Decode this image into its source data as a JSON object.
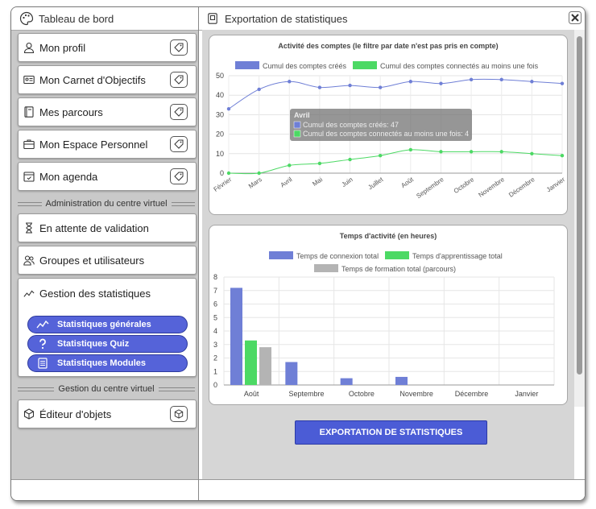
{
  "left_panel": {
    "title": "Tableau de bord",
    "items": [
      {
        "label": "Mon profil",
        "icon": "user-icon"
      },
      {
        "label": "Mon Carnet d'Objectifs",
        "icon": "id-card-icon"
      },
      {
        "label": "Mes parcours",
        "icon": "book-icon"
      },
      {
        "label": "Mon Espace Personnel",
        "icon": "briefcase-icon"
      },
      {
        "label": "Mon agenda",
        "icon": "calendar-icon"
      }
    ],
    "admin_section": "Administration du centre virtuel",
    "admin_items": [
      {
        "label": "En attente de validation",
        "icon": "hourglass-icon"
      },
      {
        "label": "Groupes et utilisateurs",
        "icon": "users-icon"
      },
      {
        "label": "Gestion des statistiques",
        "icon": "chart-line-icon"
      }
    ],
    "stats_subitems": [
      {
        "label": "Statistiques générales",
        "icon": "chart-line-icon"
      },
      {
        "label": "Statistiques Quiz",
        "icon": "question-icon"
      },
      {
        "label": "Statistiques Modules",
        "icon": "document-icon"
      }
    ],
    "management_section": "Gestion du centre virtuel",
    "management_items": [
      {
        "label": "Éditeur d'objets",
        "icon": "cube-icon"
      }
    ]
  },
  "right_panel": {
    "title": "Exportation de statistiques",
    "export_button": "EXPORTATION DE STATISTIQUES"
  },
  "colors": {
    "series_blue": "#6f7fd6",
    "series_green": "#4cd964",
    "series_gray": "#b4b4b4",
    "pill_blue": "#5563d9",
    "export_blue": "#4b5cd6"
  },
  "chart_data": [
    {
      "type": "line",
      "title": "Activité des comptes (le filtre par date n'est pas pris en compte)",
      "categories": [
        "Février",
        "Mars",
        "Avril",
        "Mai",
        "Juin",
        "Juillet",
        "Août",
        "Septembre",
        "Octobre",
        "Novembre",
        "Décembre",
        "Janvier"
      ],
      "series": [
        {
          "name": "Cumul des comptes créés",
          "color": "#6f7fd6",
          "values": [
            33,
            43,
            47,
            44,
            45,
            44,
            47,
            46,
            48,
            48,
            47,
            46
          ]
        },
        {
          "name": "Cumul des comptes connectés au moins une fois",
          "color": "#4cd964",
          "values": [
            0,
            0,
            4,
            5,
            7,
            9,
            12,
            11,
            11,
            11,
            10,
            9
          ]
        }
      ],
      "ylim": [
        0,
        50
      ],
      "yticks": [
        0,
        10,
        20,
        30,
        40,
        50
      ],
      "legend": "top",
      "grid": true,
      "tooltip": {
        "title": "Avril",
        "lines": [
          "Cumul des comptes créés: 47",
          "Cumul des comptes connectés au moins une fois: 4"
        ]
      }
    },
    {
      "type": "bar",
      "title": "Temps d'activité (en heures)",
      "categories": [
        "Août",
        "Septembre",
        "Octobre",
        "Novembre",
        "Décembre",
        "Janvier"
      ],
      "series": [
        {
          "name": "Temps de connexion total",
          "color": "#6f7fd6",
          "values": [
            7.2,
            1.7,
            0.5,
            0.6,
            0,
            0
          ]
        },
        {
          "name": "Temps d'apprentissage total",
          "color": "#4cd964",
          "values": [
            3.3,
            0,
            0,
            0,
            0,
            0
          ]
        },
        {
          "name": "Temps de formation total (parcours)",
          "color": "#b4b4b4",
          "values": [
            2.8,
            0,
            0,
            0,
            0,
            0
          ]
        }
      ],
      "ylim": [
        0,
        8
      ],
      "yticks": [
        0,
        1,
        2,
        3,
        4,
        5,
        6,
        7,
        8
      ],
      "legend": "top",
      "grid": true
    }
  ]
}
